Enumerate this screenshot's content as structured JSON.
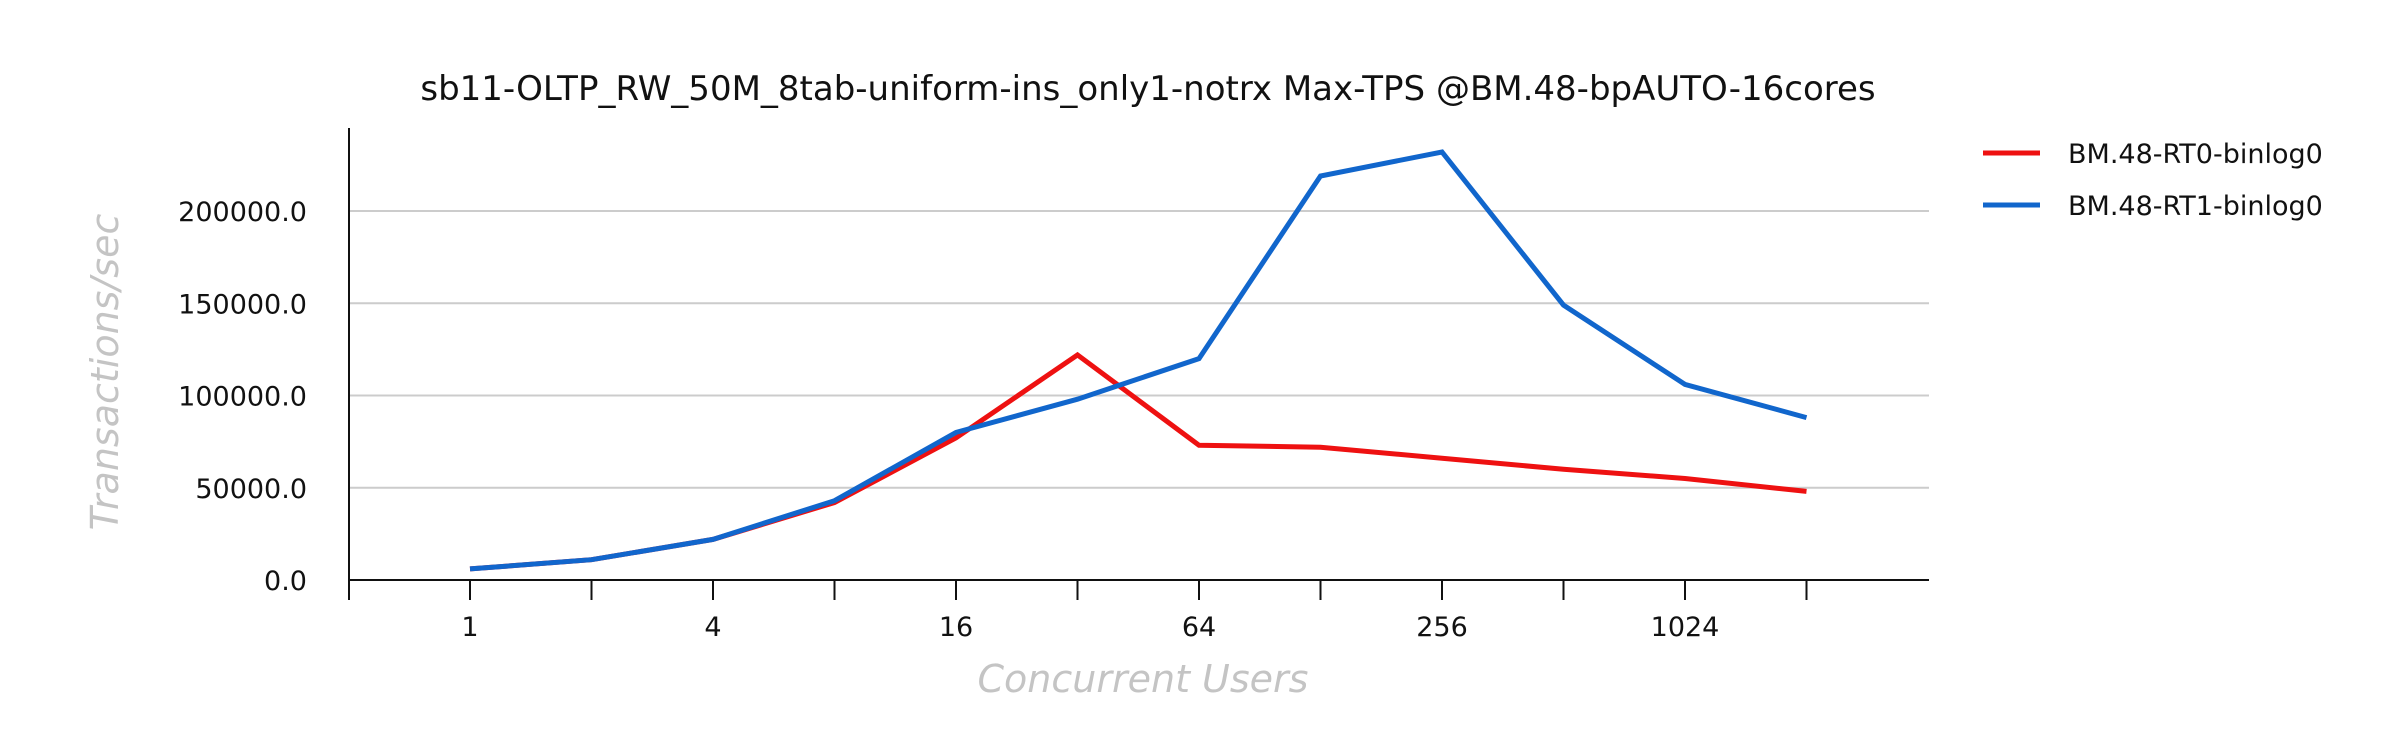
{
  "chart_data": {
    "type": "line",
    "title": "sb11-OLTP_RW_50M_8tab-uniform-ins_only1-notrx Max-TPS @BM.48-bpAUTO-16cores",
    "xlabel": "Concurrent Users",
    "ylabel": "Transactions/sec",
    "x_scale": "log2",
    "x": [
      1,
      2,
      4,
      8,
      16,
      32,
      64,
      128,
      256,
      512,
      1024,
      2048
    ],
    "x_tick_labels": [
      "1",
      "4",
      "16",
      "64",
      "256",
      "1024"
    ],
    "y_ticks": [
      0,
      50000,
      100000,
      150000,
      200000
    ],
    "y_tick_labels": [
      "0.0",
      "50000.0",
      "100000.0",
      "150000.0",
      "200000.0"
    ],
    "ylim": [
      0,
      245000
    ],
    "grid": "horizontal",
    "legend_position": "outside-right",
    "series": [
      {
        "name": "BM.48-RT0-binlog0",
        "color": "#ee1111",
        "values": [
          6000,
          11000,
          22000,
          42000,
          77000,
          122000,
          73000,
          72000,
          66000,
          60000,
          55000,
          48000
        ]
      },
      {
        "name": "BM.48-RT1-binlog0",
        "color": "#1166cc",
        "values": [
          6000,
          11000,
          22000,
          43000,
          80000,
          98000,
          120000,
          219000,
          232000,
          149000,
          106000,
          88000
        ]
      }
    ]
  }
}
